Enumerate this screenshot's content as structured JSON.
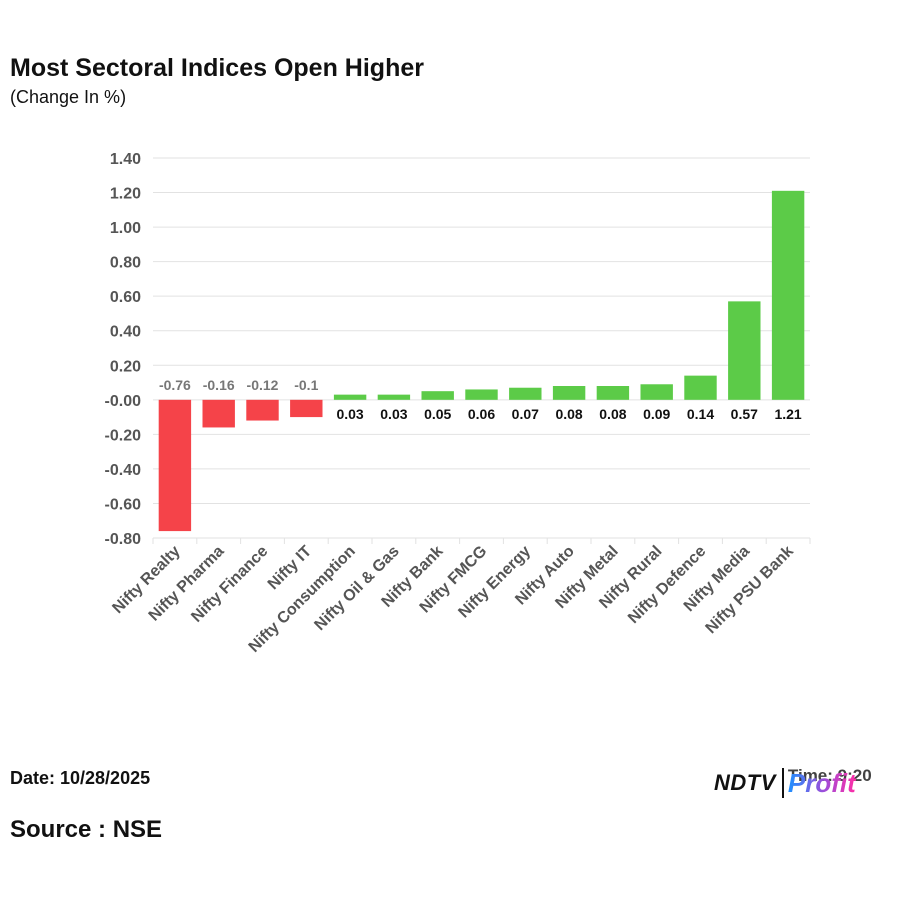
{
  "header": {
    "title": "Most Sectoral Indices Open Higher",
    "subtitle": "(Change In %)"
  },
  "footer": {
    "date": "Date: 10/28/2025",
    "source": "Source : NSE",
    "logo_brand": "NDTV",
    "logo_product": "Profit",
    "logo_overlay_text": "Time: 9:20"
  },
  "colors": {
    "positive": "#5ccb48",
    "negative": "#f54349",
    "grid": "#e2e2e2",
    "tick_text": "#555555",
    "neg_label": "#777777",
    "pos_label": "#111111"
  },
  "chart_data": {
    "type": "bar",
    "title": "",
    "xlabel": "",
    "ylabel": "",
    "ylim": [
      -0.8,
      1.4
    ],
    "yticks": [
      "1.40",
      "1.20",
      "1.00",
      "0.80",
      "0.60",
      "0.40",
      "0.20",
      "-0.00",
      "-0.20",
      "-0.40",
      "-0.60",
      "-0.80"
    ],
    "grid": true,
    "categories": [
      "Nifty Realty",
      "Nifty Pharma",
      "Nifty Finance",
      "Nifty IT",
      "Nifty Consumption",
      "Nifty Oil & Gas",
      "Nifty Bank",
      "Nifty FMCG",
      "Nifty Energy",
      "Nifty Auto",
      "Nifty Metal",
      "Nifty Rural",
      "Nifty Defence",
      "Nifty Media",
      "Nifty PSU Bank"
    ],
    "values": [
      -0.76,
      -0.16,
      -0.12,
      -0.1,
      0.03,
      0.03,
      0.05,
      0.06,
      0.07,
      0.08,
      0.08,
      0.09,
      0.14,
      0.57,
      1.21
    ],
    "labels": [
      "-0.76",
      "-0.16",
      "-0.12",
      "-0.1",
      "0.03",
      "0.03",
      "0.05",
      "0.06",
      "0.07",
      "0.08",
      "0.08",
      "0.09",
      "0.14",
      "0.57",
      "1.21"
    ]
  }
}
